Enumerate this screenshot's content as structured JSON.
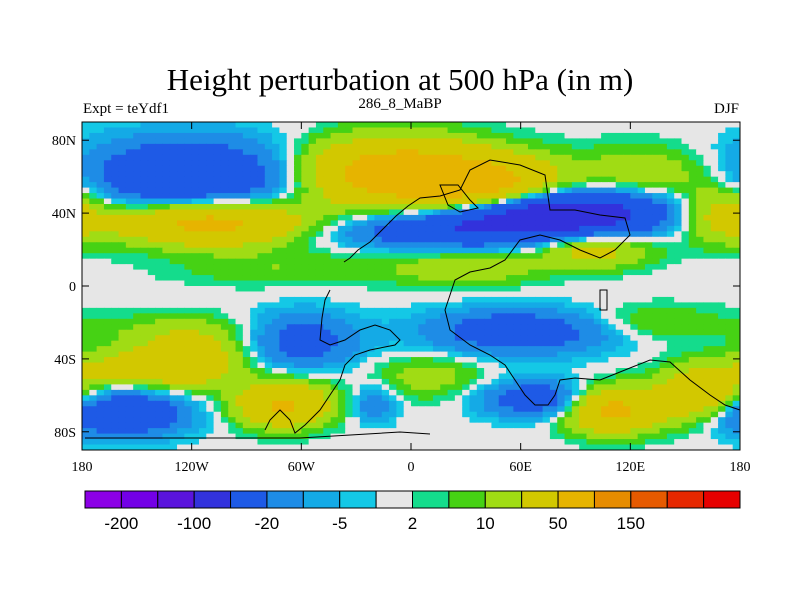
{
  "chart_data": {
    "type": "heatmap",
    "title": "Height perturbation at 500 hPa (in m)",
    "left_string": "Expt = teYdf1",
    "center_string": "286_8_MaBP",
    "right_string": "DJF",
    "x_range": [
      -180,
      180
    ],
    "y_range": [
      -90,
      90
    ],
    "x_ticks": [
      {
        "value": -180,
        "label": "180"
      },
      {
        "value": -120,
        "label": "120W"
      },
      {
        "value": -60,
        "label": "60W"
      },
      {
        "value": 0,
        "label": "0"
      },
      {
        "value": 60,
        "label": "60E"
      },
      {
        "value": 120,
        "label": "120E"
      },
      {
        "value": 180,
        "label": "180"
      }
    ],
    "y_ticks": [
      {
        "value": 80,
        "label": "80N"
      },
      {
        "value": 40,
        "label": "40N"
      },
      {
        "value": 0,
        "label": "0"
      },
      {
        "value": -40,
        "label": "40S"
      },
      {
        "value": -80,
        "label": "80S"
      }
    ],
    "colorbar": {
      "colors": [
        "#8c00e6",
        "#7300e6",
        "#5a14dc",
        "#3232dc",
        "#1e5ae6",
        "#1e8ce6",
        "#14aae6",
        "#14c8e6",
        "#e6e6e6",
        "#14dc8c",
        "#46d214",
        "#a0dc14",
        "#d2c800",
        "#e6b400",
        "#e68c00",
        "#e65a00",
        "#e62800",
        "#e60000"
      ],
      "labels": [
        {
          "boundary": 1,
          "label": "-200"
        },
        {
          "boundary": 3,
          "label": "-100"
        },
        {
          "boundary": 5,
          "label": "-20"
        },
        {
          "boundary": 7,
          "label": "-5"
        },
        {
          "boundary": 9,
          "label": "2"
        },
        {
          "boundary": 11,
          "label": "10"
        },
        {
          "boundary": 13,
          "label": "50"
        },
        {
          "boundary": 15,
          "label": "150"
        }
      ]
    },
    "blobs": [
      {
        "lon": -120,
        "lat": 60,
        "rlon": 60,
        "rlat": 20,
        "amp": -40
      },
      {
        "lon": -110,
        "lat": 35,
        "rlon": 50,
        "rlat": 12,
        "amp": 55
      },
      {
        "lon": -10,
        "lat": 62,
        "rlon": 50,
        "rlat": 18,
        "amp": 60
      },
      {
        "lon": 40,
        "lat": 55,
        "rlon": 40,
        "rlat": 15,
        "amp": 50
      },
      {
        "lon": 80,
        "lat": 40,
        "rlon": 60,
        "rlat": 12,
        "amp": -70
      },
      {
        "lon": 20,
        "lat": 30,
        "rlon": 60,
        "rlat": 10,
        "amp": -30
      },
      {
        "lon": 170,
        "lat": 40,
        "rlon": 25,
        "rlat": 15,
        "amp": 30
      },
      {
        "lon": 100,
        "lat": 20,
        "rlon": 30,
        "rlat": 10,
        "amp": 25
      },
      {
        "lon": 130,
        "lat": 62,
        "rlon": 40,
        "rlat": 15,
        "amp": 15
      },
      {
        "lon": -70,
        "lat": 10,
        "rlon": 60,
        "rlat": 10,
        "amp": 8
      },
      {
        "lon": 30,
        "lat": 10,
        "rlon": 40,
        "rlat": 10,
        "amp": 15
      },
      {
        "lon": -130,
        "lat": -25,
        "rlon": 50,
        "rlat": 10,
        "amp": 8
      },
      {
        "lon": -150,
        "lat": -45,
        "rlon": 40,
        "rlat": 10,
        "amp": 20
      },
      {
        "lon": -120,
        "lat": -40,
        "rlon": 30,
        "rlat": 15,
        "amp": 25
      },
      {
        "lon": -60,
        "lat": -30,
        "rlon": 30,
        "rlat": 15,
        "amp": -25
      },
      {
        "lon": 60,
        "lat": -25,
        "rlon": 50,
        "rlat": 12,
        "amp": -30
      },
      {
        "lon": 130,
        "lat": -20,
        "rlon": 40,
        "rlat": 10,
        "amp": 10
      },
      {
        "lon": -160,
        "lat": -70,
        "rlon": 35,
        "rlat": 12,
        "amp": -40
      },
      {
        "lon": -70,
        "lat": -65,
        "rlon": 25,
        "rlat": 12,
        "amp": 45
      },
      {
        "lon": -20,
        "lat": -65,
        "rlon": 12,
        "rlat": 10,
        "amp": -15
      },
      {
        "lon": 70,
        "lat": -62,
        "rlon": 30,
        "rlat": 10,
        "amp": -30
      },
      {
        "lon": 110,
        "lat": -68,
        "rlon": 25,
        "rlat": 12,
        "amp": 50
      },
      {
        "lon": 160,
        "lat": -60,
        "rlon": 25,
        "rlat": 15,
        "amp": 35
      },
      {
        "lon": 10,
        "lat": -50,
        "rlon": 30,
        "rlat": 12,
        "amp": 12
      }
    ]
  }
}
